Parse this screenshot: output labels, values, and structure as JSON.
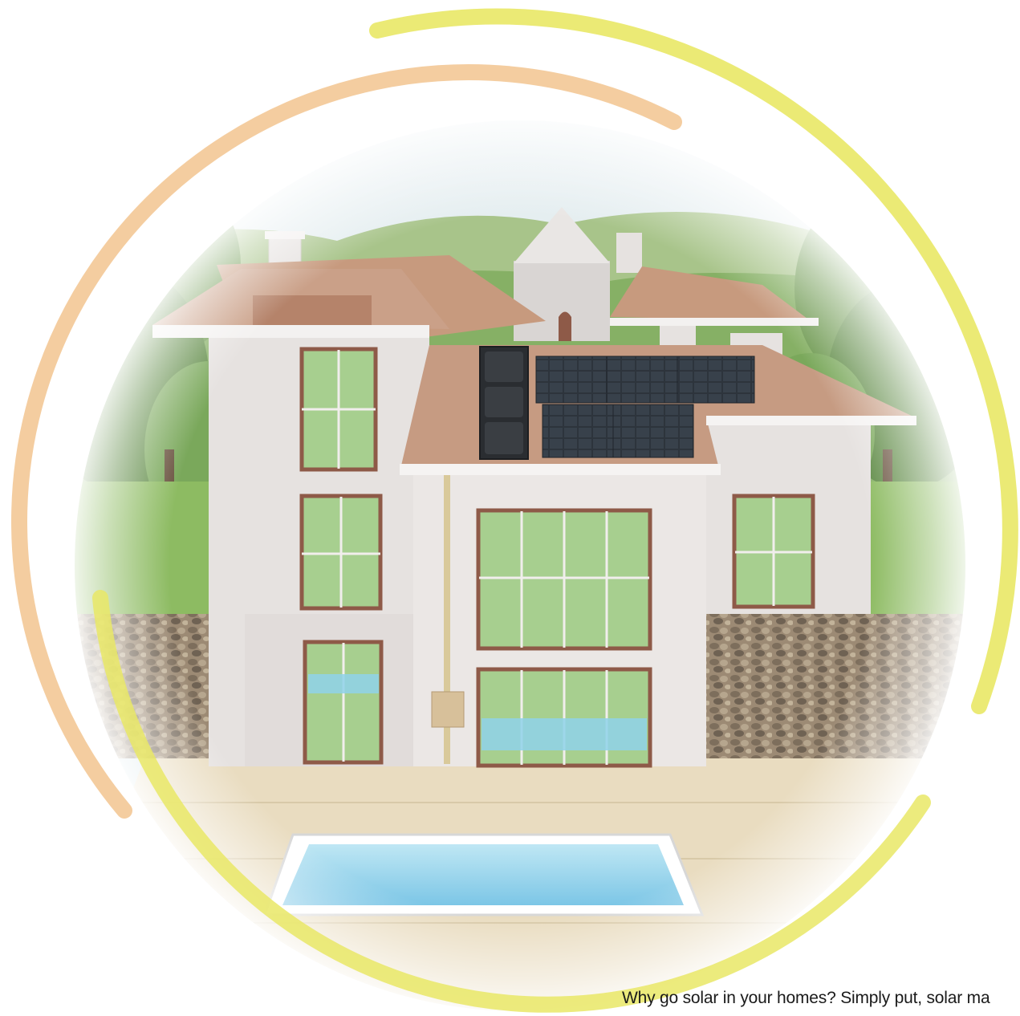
{
  "caption": {
    "text": "Why go solar in your homes? Simply put, solar ma"
  },
  "illustration": {
    "subject": "house-with-solar-panels",
    "colors": {
      "arc_yellow": "#e9e866",
      "arc_orange": "#f3c896",
      "roof": "#c89a80",
      "wall": "#e8e4e2",
      "window_frame": "#8e5a48",
      "hills": "#8fb86a",
      "sky": "#dfeaf0",
      "pool": "#8cd0ea",
      "panel": "#2b3138",
      "stone": "#8a7a68",
      "deck": "#e8d8b8"
    }
  }
}
